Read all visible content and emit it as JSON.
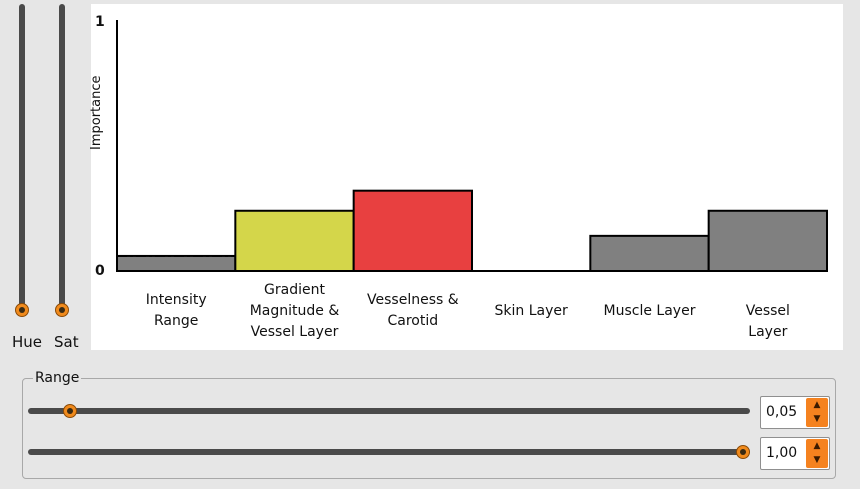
{
  "color_sliders": [
    {
      "label": "Hue",
      "value_fraction": 0.0
    },
    {
      "label": "Sat",
      "value_fraction": 0.0
    }
  ],
  "chart_data": {
    "type": "bar",
    "ylabel": "Importance",
    "ylim": [
      0,
      1
    ],
    "y_ticks": [
      "0",
      "1"
    ],
    "categories": [
      "Intensity\nRange",
      "Gradient\nMagnitude &\nVessel Layer",
      "Vesselness &\nCarotid",
      "Skin Layer",
      "Muscle Layer",
      "Vessel Layer"
    ],
    "values": [
      0.06,
      0.24,
      0.32,
      0.0,
      0.14,
      0.24
    ],
    "colors": [
      "#808080",
      "#d4d64a",
      "#e84040",
      "#ffffff",
      "#808080",
      "#808080"
    ],
    "threshold_line": 0.06
  },
  "range": {
    "title": "Range",
    "low": {
      "value": "0,05",
      "fraction": 0.05
    },
    "high": {
      "value": "1,00",
      "fraction": 1.0
    }
  },
  "icons": {
    "spin_up": "up-arrow-icon",
    "spin_down": "down-arrow-icon"
  }
}
